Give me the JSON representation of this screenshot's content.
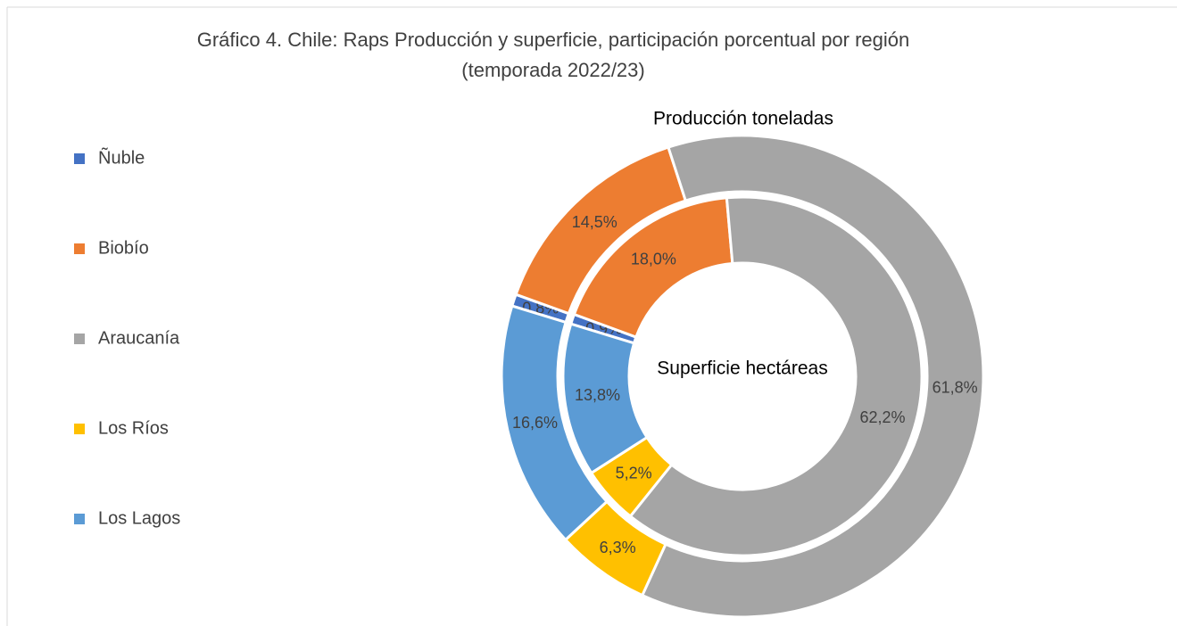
{
  "chart_data": {
    "type": "donut",
    "title": "Gráfico 4. Chile: Raps Producción y superficie, participación porcentual por región (temporada 2022/23)",
    "categories": [
      "Ñuble",
      "Biobío",
      "Araucanía",
      "Los Ríos",
      "Los Lagos"
    ],
    "colors": [
      "#4472c4",
      "#ed7d31",
      "#a5a5a5",
      "#ffc000",
      "#5b9bd5"
    ],
    "legend": "left",
    "series": [
      {
        "name": "Producción toneladas",
        "values": [
          0.8,
          14.5,
          61.8,
          6.3,
          16.6
        ],
        "value_labels": [
          "0,8%",
          "14,5%",
          "61,8%",
          "6,3%",
          "16,6%"
        ]
      },
      {
        "name": "Superficie hectáreas",
        "values": [
          0.9,
          18.0,
          62.2,
          5.2,
          13.8
        ],
        "value_labels": [
          "0,9%",
          "18,0%",
          "62,2%",
          "5,2%",
          "13,8%"
        ]
      }
    ]
  }
}
